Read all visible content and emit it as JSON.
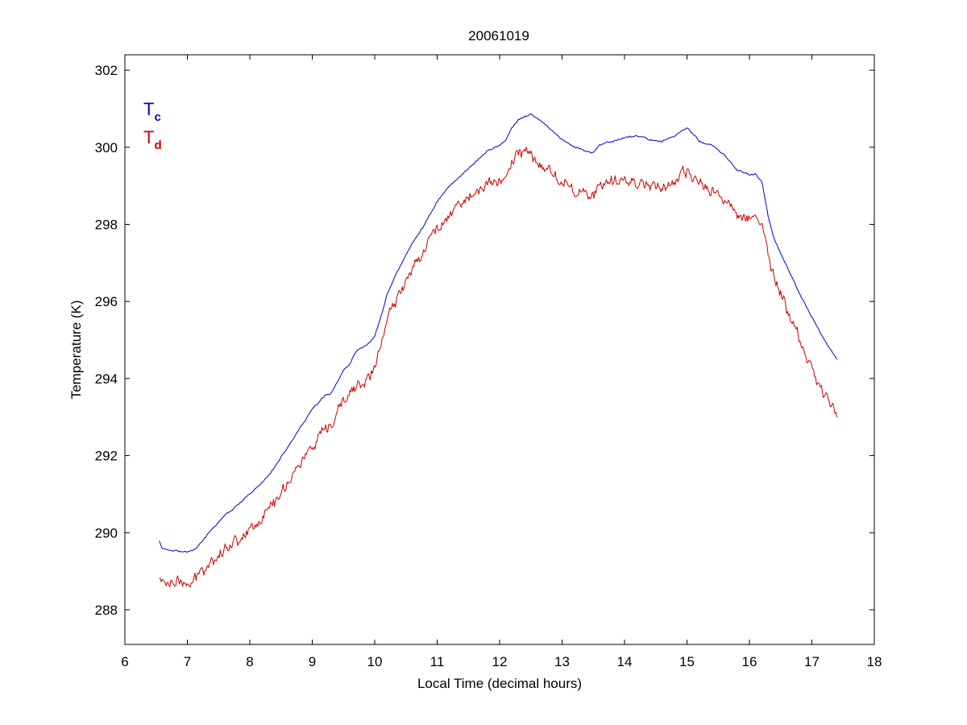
{
  "chart_data": {
    "type": "line",
    "title": "20061019",
    "xlabel": "Local Time (decimal hours)",
    "ylabel": "Temperature (K)",
    "xlim": [
      6,
      18
    ],
    "ylim": [
      287.1,
      302.4
    ],
    "xticks": [
      6,
      7,
      8,
      9,
      10,
      11,
      12,
      13,
      14,
      15,
      16,
      17,
      18
    ],
    "yticks": [
      288,
      290,
      292,
      294,
      296,
      298,
      300,
      302
    ],
    "grid": false,
    "legend_position": "top-left",
    "legend": [
      {
        "main": "T",
        "sub": "c",
        "color": "#0000cc"
      },
      {
        "main": "T",
        "sub": "d",
        "color": "#cc0000"
      }
    ],
    "series": [
      {
        "color": "#0000cc",
        "noise": 0.03,
        "x": [
          6.55,
          6.6,
          6.7,
          6.8,
          6.9,
          7.0,
          7.1,
          7.2,
          7.4,
          7.6,
          7.8,
          8.0,
          8.2,
          8.4,
          8.6,
          8.8,
          9.0,
          9.2,
          9.3,
          9.4,
          9.5,
          9.6,
          9.7,
          9.8,
          9.9,
          10.0,
          10.1,
          10.2,
          10.4,
          10.6,
          10.8,
          11.0,
          11.2,
          11.4,
          11.6,
          11.8,
          12.0,
          12.1,
          12.2,
          12.3,
          12.4,
          12.5,
          12.6,
          12.8,
          13.0,
          13.2,
          13.4,
          13.5,
          13.6,
          13.8,
          14.0,
          14.2,
          14.4,
          14.6,
          14.8,
          15.0,
          15.1,
          15.2,
          15.4,
          15.6,
          15.8,
          16.0,
          16.1,
          16.2,
          16.3,
          16.4,
          16.6,
          16.8,
          17.0,
          17.2,
          17.4
        ],
        "y": [
          289.8,
          289.6,
          289.55,
          289.55,
          289.5,
          289.5,
          289.55,
          289.7,
          290.1,
          290.45,
          290.7,
          291.0,
          291.3,
          291.7,
          292.2,
          292.7,
          293.2,
          293.55,
          293.6,
          293.9,
          294.2,
          294.35,
          294.7,
          294.8,
          294.9,
          295.1,
          295.6,
          296.2,
          296.9,
          297.5,
          298.0,
          298.6,
          299.0,
          299.3,
          299.6,
          299.9,
          300.05,
          300.2,
          300.5,
          300.7,
          300.8,
          300.85,
          300.75,
          300.5,
          300.2,
          300.0,
          299.9,
          299.85,
          300.05,
          300.15,
          300.25,
          300.3,
          300.2,
          300.15,
          300.3,
          300.5,
          300.35,
          300.15,
          300.05,
          299.8,
          299.4,
          299.3,
          299.3,
          299.1,
          298.2,
          297.6,
          296.9,
          296.2,
          295.6,
          295.0,
          294.5
        ]
      },
      {
        "color": "#cc0000",
        "noise": 0.22,
        "x": [
          6.55,
          6.6,
          6.7,
          6.8,
          6.9,
          7.0,
          7.1,
          7.2,
          7.4,
          7.6,
          7.8,
          8.0,
          8.2,
          8.4,
          8.6,
          8.8,
          9.0,
          9.2,
          9.3,
          9.4,
          9.5,
          9.6,
          9.7,
          9.8,
          9.9,
          10.0,
          10.1,
          10.2,
          10.4,
          10.6,
          10.8,
          11.0,
          11.2,
          11.4,
          11.6,
          11.8,
          12.0,
          12.1,
          12.2,
          12.3,
          12.4,
          12.5,
          12.6,
          12.8,
          13.0,
          13.2,
          13.4,
          13.5,
          13.6,
          13.8,
          14.0,
          14.2,
          14.4,
          14.6,
          14.8,
          15.0,
          15.1,
          15.2,
          15.4,
          15.6,
          15.8,
          16.0,
          16.1,
          16.2,
          16.3,
          16.4,
          16.6,
          16.8,
          17.0,
          17.2,
          17.4
        ],
        "y": [
          288.8,
          288.75,
          288.7,
          288.75,
          288.7,
          288.6,
          288.7,
          289.0,
          289.3,
          289.6,
          289.8,
          290.1,
          290.4,
          290.8,
          291.3,
          291.8,
          292.2,
          292.6,
          292.7,
          293.1,
          293.4,
          293.6,
          293.8,
          293.85,
          294.0,
          294.3,
          294.9,
          295.5,
          296.2,
          296.9,
          297.4,
          297.9,
          298.3,
          298.6,
          298.8,
          299.0,
          299.15,
          299.3,
          299.6,
          299.85,
          299.9,
          299.8,
          299.6,
          299.4,
          299.1,
          298.9,
          298.8,
          298.75,
          298.9,
          299.1,
          299.15,
          299.1,
          299.05,
          299.0,
          299.05,
          299.35,
          299.2,
          299.05,
          298.9,
          298.6,
          298.3,
          298.2,
          298.2,
          298.0,
          297.2,
          296.6,
          295.8,
          295.0,
          294.2,
          293.6,
          293.1
        ]
      }
    ]
  }
}
